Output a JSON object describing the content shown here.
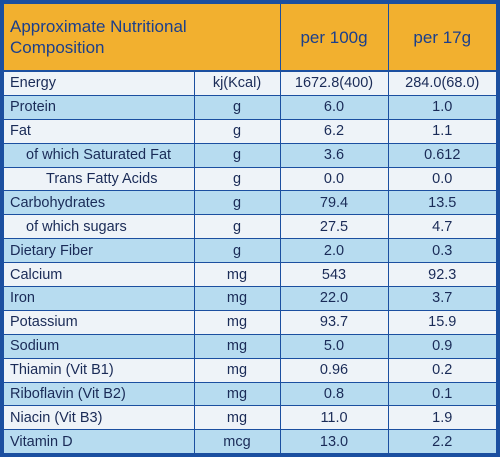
{
  "header": {
    "title_line1": "Approximate Nutritional",
    "title_line2": "Composition",
    "col_per100": "per 100g",
    "col_per17": "per 17g"
  },
  "rows": [
    {
      "name": "Energy",
      "unit": "kj(Kcal)",
      "per100": "1672.8(400)",
      "per17": "284.0(68.0)"
    },
    {
      "name": "Protein",
      "unit": "g",
      "per100": "6.0",
      "per17": "1.0"
    },
    {
      "name": "Fat",
      "unit": "g",
      "per100": "6.2",
      "per17": "1.1"
    },
    {
      "name": "of which Saturated Fat",
      "unit": "g",
      "per100": "3.6",
      "per17": "0.612"
    },
    {
      "name": "Trans Fatty Acids",
      "unit": "g",
      "per100": "0.0",
      "per17": "0.0"
    },
    {
      "name": "Carbohydrates",
      "unit": "g",
      "per100": "79.4",
      "per17": "13.5"
    },
    {
      "name": "of which sugars",
      "unit": "g",
      "per100": "27.5",
      "per17": "4.7"
    },
    {
      "name": "Dietary Fiber",
      "unit": "g",
      "per100": "2.0",
      "per17": "0.3"
    },
    {
      "name": "Calcium",
      "unit": "mg",
      "per100": "543",
      "per17": "92.3"
    },
    {
      "name": "Iron",
      "unit": "mg",
      "per100": "22.0",
      "per17": "3.7"
    },
    {
      "name": "Potassium",
      "unit": "mg",
      "per100": "93.7",
      "per17": "15.9"
    },
    {
      "name": "Sodium",
      "unit": "mg",
      "per100": "5.0",
      "per17": "0.9"
    },
    {
      "name": "Thiamin (Vit B1)",
      "unit": "mg",
      "per100": "0.96",
      "per17": "0.2"
    },
    {
      "name": "Riboflavin (Vit B2)",
      "unit": "mg",
      "per100": "0.8",
      "per17": "0.1"
    },
    {
      "name": "Niacin (Vit B3)",
      "unit": "mg",
      "per100": "11.0",
      "per17": "1.9"
    },
    {
      "name": "Vitamin D",
      "unit": "mcg",
      "per100": "13.0",
      "per17": "2.2"
    }
  ],
  "colors": {
    "frame": "#1b4fa0",
    "header_bg": "#f2b02f",
    "row_light": "#eef3f8",
    "row_blue": "#b7dcf0",
    "text": "#1a2b57"
  }
}
